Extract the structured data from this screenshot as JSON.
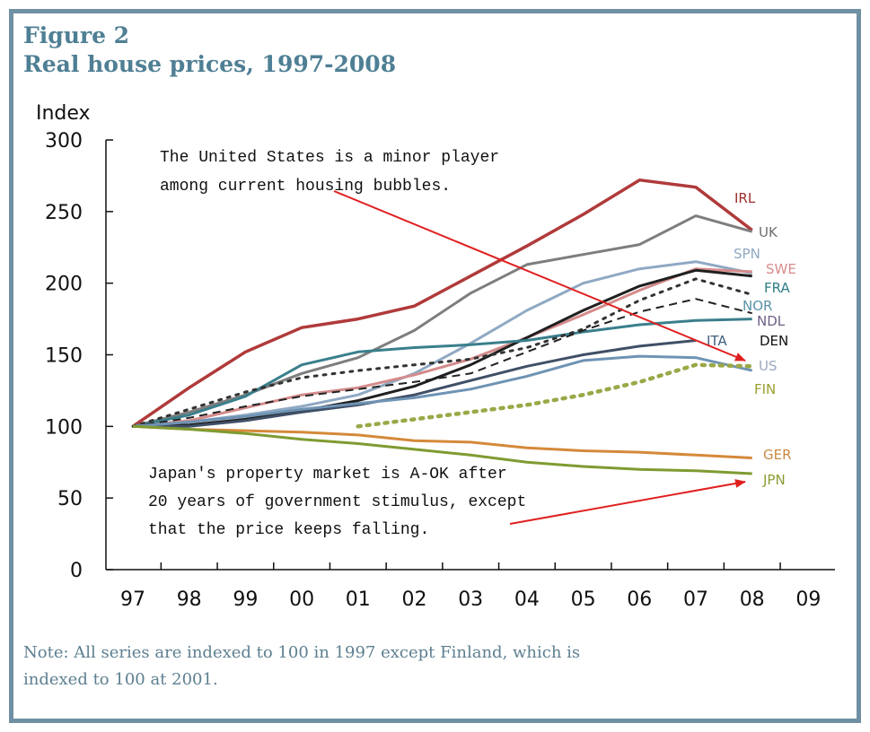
{
  "figure_label": "Figure 2",
  "figure_title": "Real house prices, 1997-2008",
  "note_line1": "Note: All series are indexed to 100 in 1997 except Finland, which is",
  "note_line2": "indexed to 100 at 2001.",
  "chart_data": {
    "type": "line",
    "ylabel": "Index",
    "xlabel": "",
    "ylim": [
      0,
      300
    ],
    "yticks": [
      0,
      50,
      100,
      150,
      200,
      250,
      300
    ],
    "xticks": [
      "97",
      "98",
      "99",
      "00",
      "01",
      "02",
      "03",
      "04",
      "05",
      "06",
      "07",
      "08",
      "09"
    ],
    "grid": false,
    "series": [
      {
        "name": "IRL",
        "color": "#b03a3a",
        "dash": "solid",
        "width": 3.5,
        "points": [
          [
            1997,
            100
          ],
          [
            1998,
            127
          ],
          [
            1999,
            152
          ],
          [
            2000,
            169
          ],
          [
            2001,
            175
          ],
          [
            2002,
            184
          ],
          [
            2003,
            205
          ],
          [
            2004,
            226
          ],
          [
            2005,
            248
          ],
          [
            2006,
            272
          ],
          [
            2007,
            267
          ],
          [
            2008,
            237
          ]
        ]
      },
      {
        "name": "UK",
        "color": "#7e7e7e",
        "dash": "solid",
        "width": 3,
        "points": [
          [
            1997,
            100
          ],
          [
            1998,
            110
          ],
          [
            1999,
            122
          ],
          [
            2000,
            137
          ],
          [
            2001,
            148
          ],
          [
            2002,
            167
          ],
          [
            2003,
            193
          ],
          [
            2004,
            213
          ],
          [
            2005,
            220
          ],
          [
            2006,
            227
          ],
          [
            2007,
            247
          ],
          [
            2008,
            236
          ]
        ]
      },
      {
        "name": "SPN",
        "color": "#8fa9c3",
        "dash": "solid",
        "width": 3,
        "points": [
          [
            1997,
            100
          ],
          [
            1998,
            103
          ],
          [
            1999,
            108
          ],
          [
            2000,
            114
          ],
          [
            2001,
            122
          ],
          [
            2002,
            137
          ],
          [
            2003,
            158
          ],
          [
            2004,
            181
          ],
          [
            2005,
            200
          ],
          [
            2006,
            210
          ],
          [
            2007,
            215
          ],
          [
            2008,
            207
          ]
        ]
      },
      {
        "name": "SWE",
        "color": "#d48b8b",
        "dash": "solid",
        "width": 3,
        "points": [
          [
            1997,
            100
          ],
          [
            1998,
            104
          ],
          [
            1999,
            113
          ],
          [
            2000,
            122
          ],
          [
            2001,
            127
          ],
          [
            2002,
            136
          ],
          [
            2003,
            147
          ],
          [
            2004,
            162
          ],
          [
            2005,
            178
          ],
          [
            2006,
            195
          ],
          [
            2007,
            210
          ],
          [
            2008,
            208
          ]
        ]
      },
      {
        "name": "FRA",
        "color": "#1f1f1f",
        "dash": "solid",
        "width": 3,
        "points": [
          [
            1997,
            100
          ],
          [
            1998,
            101
          ],
          [
            1999,
            105
          ],
          [
            2000,
            111
          ],
          [
            2001,
            118
          ],
          [
            2002,
            128
          ],
          [
            2003,
            143
          ],
          [
            2004,
            162
          ],
          [
            2005,
            181
          ],
          [
            2006,
            198
          ],
          [
            2007,
            209
          ],
          [
            2008,
            205
          ]
        ]
      },
      {
        "name": "NOR",
        "color": "#3a7f8c",
        "dash": "solid",
        "width": 3,
        "points": [
          [
            1997,
            100
          ],
          [
            1998,
            108
          ],
          [
            1999,
            121
          ],
          [
            2000,
            143
          ],
          [
            2001,
            152
          ],
          [
            2002,
            155
          ],
          [
            2003,
            157
          ],
          [
            2004,
            160
          ],
          [
            2005,
            166
          ],
          [
            2006,
            171
          ],
          [
            2007,
            174
          ],
          [
            2008,
            175
          ]
        ]
      },
      {
        "name": "NDL",
        "color": "#333333",
        "dash": "dot",
        "width": 3,
        "points": [
          [
            1997,
            100
          ],
          [
            1998,
            112
          ],
          [
            1999,
            124
          ],
          [
            2000,
            134
          ],
          [
            2001,
            139
          ],
          [
            2002,
            143
          ],
          [
            2003,
            147
          ],
          [
            2004,
            155
          ],
          [
            2005,
            168
          ],
          [
            2006,
            188
          ],
          [
            2007,
            203
          ],
          [
            2008,
            192
          ]
        ]
      },
      {
        "name": "DEN",
        "color": "#222222",
        "dash": "dash",
        "width": 2,
        "points": [
          [
            1997,
            100
          ],
          [
            1998,
            106
          ],
          [
            1999,
            114
          ],
          [
            2000,
            121
          ],
          [
            2001,
            126
          ],
          [
            2002,
            131
          ],
          [
            2003,
            137
          ],
          [
            2004,
            152
          ],
          [
            2005,
            167
          ],
          [
            2006,
            180
          ],
          [
            2007,
            189
          ],
          [
            2008,
            179
          ]
        ]
      },
      {
        "name": "ITA",
        "color": "#3f4f66",
        "dash": "solid",
        "width": 3,
        "points": [
          [
            1997,
            100
          ],
          [
            1998,
            100
          ],
          [
            1999,
            104
          ],
          [
            2000,
            110
          ],
          [
            2001,
            115
          ],
          [
            2002,
            122
          ],
          [
            2003,
            132
          ],
          [
            2004,
            142
          ],
          [
            2005,
            150
          ],
          [
            2006,
            156
          ],
          [
            2007,
            160
          ]
        ]
      },
      {
        "name": "US",
        "color": "#6e93b4",
        "dash": "solid",
        "width": 3,
        "points": [
          [
            1997,
            100
          ],
          [
            1998,
            103
          ],
          [
            1999,
            107
          ],
          [
            2000,
            112
          ],
          [
            2001,
            116
          ],
          [
            2002,
            120
          ],
          [
            2003,
            126
          ],
          [
            2004,
            135
          ],
          [
            2005,
            146
          ],
          [
            2006,
            149
          ],
          [
            2007,
            148
          ],
          [
            2008,
            139
          ]
        ]
      },
      {
        "name": "FIN",
        "color": "#9aa847",
        "dash": "dot",
        "width": 4.5,
        "points": [
          [
            2001,
            100
          ],
          [
            2002,
            105
          ],
          [
            2003,
            110
          ],
          [
            2004,
            115
          ],
          [
            2005,
            122
          ],
          [
            2006,
            131
          ],
          [
            2007,
            143
          ],
          [
            2008,
            142
          ]
        ]
      },
      {
        "name": "GER",
        "color": "#d5893a",
        "dash": "solid",
        "width": 3,
        "points": [
          [
            1997,
            100
          ],
          [
            1998,
            98
          ],
          [
            1999,
            97
          ],
          [
            2000,
            96
          ],
          [
            2001,
            94
          ],
          [
            2002,
            90
          ],
          [
            2003,
            89
          ],
          [
            2004,
            85
          ],
          [
            2005,
            83
          ],
          [
            2006,
            82
          ],
          [
            2007,
            80
          ],
          [
            2008,
            78
          ]
        ]
      },
      {
        "name": "JPN",
        "color": "#7f9b32",
        "dash": "solid",
        "width": 3,
        "points": [
          [
            1997,
            100
          ],
          [
            1998,
            98
          ],
          [
            1999,
            95
          ],
          [
            2000,
            91
          ],
          [
            2001,
            88
          ],
          [
            2002,
            84
          ],
          [
            2003,
            80
          ],
          [
            2004,
            75
          ],
          [
            2005,
            72
          ],
          [
            2006,
            70
          ],
          [
            2007,
            69
          ],
          [
            2008,
            67
          ]
        ]
      }
    ],
    "series_labels": [
      {
        "name": "IRL",
        "color": "#9b2c2c"
      },
      {
        "name": "UK",
        "color": "#6e6e6e"
      },
      {
        "name": "SPN",
        "color": "#8fa9c3"
      },
      {
        "name": "SWE",
        "color": "#d98b8b"
      },
      {
        "name": "FRA",
        "color": "#2f7d86"
      },
      {
        "name": "NOR",
        "color": "#5a93a8"
      },
      {
        "name": "NDL",
        "color": "#6f5f86"
      },
      {
        "name": "DEN",
        "color": "#111111"
      },
      {
        "name": "ITA",
        "color": "#3f5f7d"
      },
      {
        "name": "US",
        "color": "#9aa9c0"
      },
      {
        "name": "FIN",
        "color": "#9aa02f"
      },
      {
        "name": "GER",
        "color": "#c98a45"
      },
      {
        "name": "JPN",
        "color": "#8a9c32"
      }
    ],
    "annotations": [
      {
        "lines": [
          "The United States is a minor player",
          "among current housing bubbles."
        ],
        "points_to": "US"
      },
      {
        "lines": [
          "Japan's property market is A-OK after",
          "20 years of government stimulus, except",
          "that the price keeps falling."
        ],
        "points_to": "JPN"
      }
    ],
    "arrow_color": "#e02020"
  }
}
